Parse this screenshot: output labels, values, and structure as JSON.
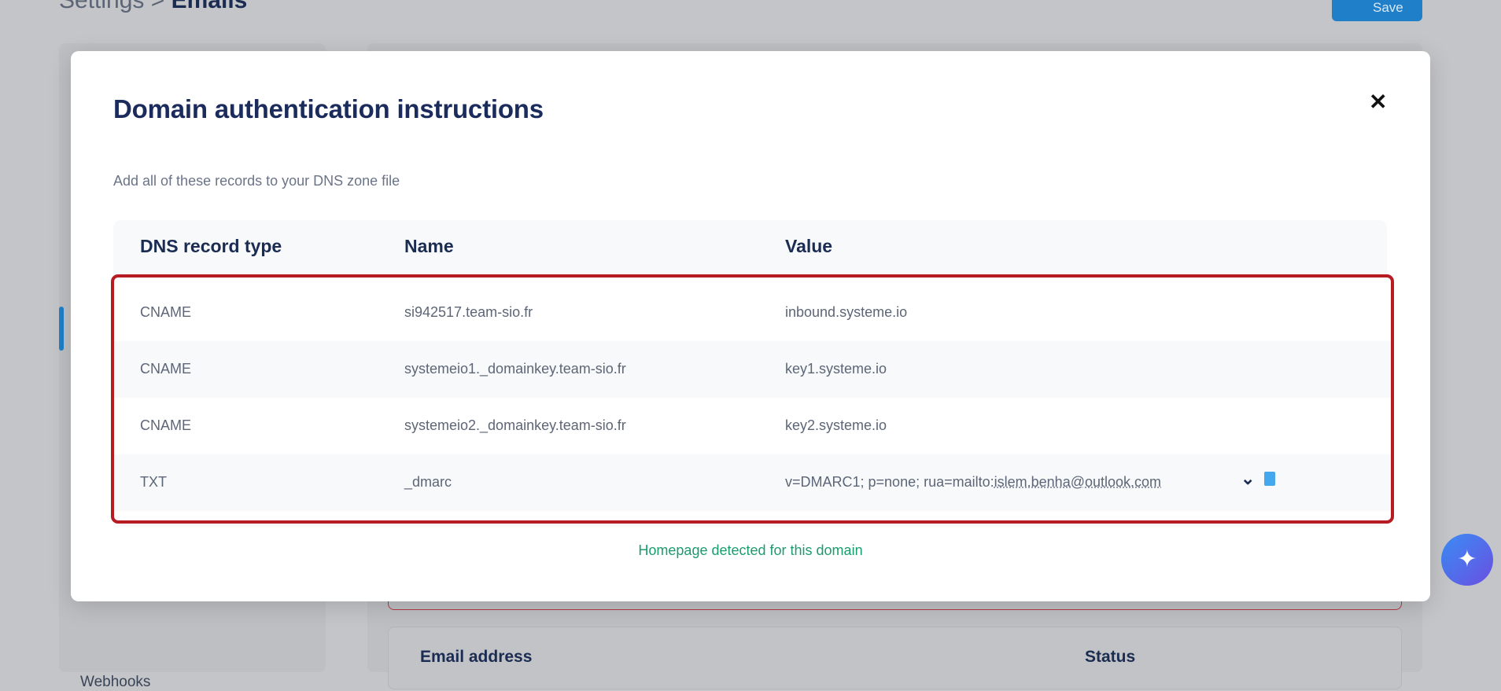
{
  "background": {
    "breadcrumb": {
      "parent": "Settings",
      "separator": ">",
      "current": "Emails"
    },
    "save_label": "Save",
    "sidebar_item": "Webhooks",
    "table_headers": [
      "Email address",
      "Status"
    ]
  },
  "modal": {
    "title": "Domain authentication instructions",
    "close_icon": "close-icon",
    "subtitle": "Add all of these records to your DNS zone file",
    "headers": [
      "DNS record type",
      "Name",
      "Value"
    ],
    "rows": [
      {
        "type": "CNAME",
        "name": "si942517.team-sio.fr",
        "value": "inbound.systeme.io"
      },
      {
        "type": "CNAME",
        "name": "systemeio1._domainkey.team-sio.fr",
        "value": "key1.systeme.io"
      },
      {
        "type": "CNAME",
        "name": "systemeio2._domainkey.team-sio.fr",
        "value": "key2.systeme.io"
      },
      {
        "type": "TXT",
        "name": "_dmarc",
        "value": "v=DMARC1; p=none; rua=mailto:",
        "value_email": "islem.benha@outlook.com"
      }
    ],
    "status": "Homepage detected for this domain"
  },
  "colors": {
    "accent": "#1f7fc8",
    "title": "#1b2c5c",
    "highlight_border": "#b71c23",
    "success": "#1a9c6e"
  }
}
